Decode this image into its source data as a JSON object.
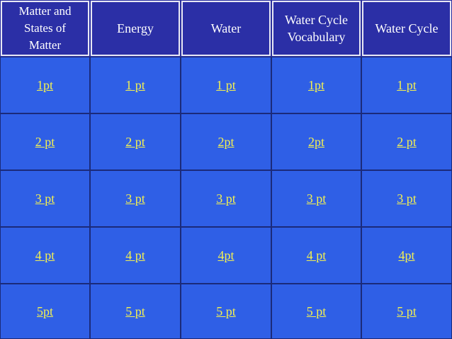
{
  "board": {
    "categories": [
      "Matter and States of Matter",
      "Energy",
      "Water",
      "Water Cycle Vocabulary",
      "Water Cycle"
    ],
    "rows": [
      [
        "1pt",
        "1 pt",
        "1 pt",
        "1pt",
        "1 pt"
      ],
      [
        "2 pt",
        "2 pt",
        "2pt",
        "2pt",
        "2 pt"
      ],
      [
        "3 pt",
        "3 pt",
        "3 pt",
        "3 pt",
        "3 pt"
      ],
      [
        "4 pt",
        "4 pt",
        "4pt",
        "4 pt",
        "4pt"
      ],
      [
        "5pt",
        "5 pt",
        "5 pt",
        "5 pt",
        "5 pt"
      ]
    ]
  }
}
